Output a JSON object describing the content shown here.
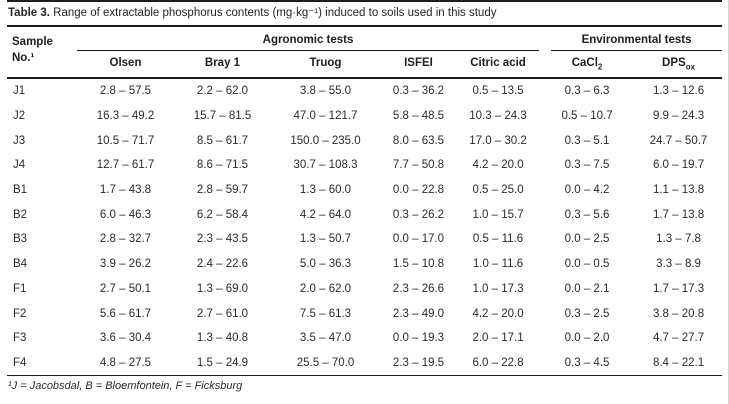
{
  "caption": {
    "label": "Table 3.",
    "text": " Range of extractable phosphorus contents (mg·kg⁻¹) induced to soils used in this study"
  },
  "table": {
    "corner_header": "Sample\nNo.¹",
    "group_headers": [
      "Agronomic tests",
      "Environmental tests"
    ],
    "columns": [
      {
        "base": "Olsen",
        "sub": ""
      },
      {
        "base": "Bray 1",
        "sub": ""
      },
      {
        "base": "Truog",
        "sub": ""
      },
      {
        "base": "ISFEI",
        "sub": ""
      },
      {
        "base": "Citric acid",
        "sub": ""
      },
      {
        "base": "CaCl",
        "sub": "2"
      },
      {
        "base": "DPS",
        "sub": "ox"
      }
    ],
    "rows": [
      {
        "sample": "J1",
        "values": [
          "2.8 – 57.5",
          "2.2 – 62.0",
          "3.8 – 55.0",
          "0.3 – 36.2",
          "0.5 – 13.5",
          "0.3 – 6.3",
          "1.3 – 12.6"
        ]
      },
      {
        "sample": "J2",
        "values": [
          "16.3 – 49.2",
          "15.7 – 81.5",
          "47.0 – 121.7",
          "5.8 – 48.5",
          "10.3 – 24.3",
          "0.5 – 10.7",
          "9.9 – 24.3"
        ]
      },
      {
        "sample": "J3",
        "values": [
          "10.5 – 71.7",
          "8.5 – 61.7",
          "150.0 – 235.0",
          "8.0 – 63.5",
          "17.0 – 30.2",
          "0.3 – 5.1",
          "24.7 – 50.7"
        ]
      },
      {
        "sample": "J4",
        "values": [
          "12.7 – 61.7",
          "8.6 – 71.5",
          "30.7 – 108.3",
          "7.7 – 50.8",
          "4.2 – 20.0",
          "0.3 – 7.5",
          "6.0 – 19.7"
        ]
      },
      {
        "sample": "B1",
        "values": [
          "1.7 – 43.8",
          "2.8 – 59.7",
          "1.3 – 60.0",
          "0.0 – 22.8",
          "0.5 – 25.0",
          "0.0 – 4.2",
          "1.1 – 13.8"
        ]
      },
      {
        "sample": "B2",
        "values": [
          "6.0 – 46.3",
          "6.2 – 58.4",
          "4.2 – 64.0",
          "0.3 – 26.2",
          "1.0 – 15.7",
          "0.3 – 5.6",
          "1.7 – 13.8"
        ]
      },
      {
        "sample": "B3",
        "values": [
          "2.8 – 32.7",
          "2.3 – 43.5",
          "1.3 – 50.7",
          "0.0 – 17.0",
          "0.5 – 11.6",
          "0.0 – 2.5",
          "1.3 – 7.8"
        ]
      },
      {
        "sample": "B4",
        "values": [
          "3.9 – 26.2",
          "2.4 – 22.6",
          "5.0 – 36.3",
          "1.5 – 10.8",
          "1.0 – 11.6",
          "0.0 – 0.5",
          "3.3 – 8.9"
        ]
      },
      {
        "sample": "F1",
        "values": [
          "2.7 – 50.1",
          "1.3 – 69.0",
          "2.0 – 62.0",
          "2.3 – 26.6",
          "1.0 – 17.3",
          "0.0 – 2.1",
          "1.7 – 17.3"
        ]
      },
      {
        "sample": "F2",
        "values": [
          "5.6 – 61.7",
          "2.7 – 61.0",
          "7.5 – 61.3",
          "2.3 – 49.0",
          "4.2 – 20.0",
          "0.3 – 2.5",
          "3.8 – 20.8"
        ]
      },
      {
        "sample": "F3",
        "values": [
          "3.6 – 30.4",
          "1.3 – 40.8",
          "3.5 – 47.0",
          "0.0 – 19.3",
          "2.0 – 17.1",
          "0.0 – 2.0",
          "4.7 – 27.7"
        ]
      },
      {
        "sample": "F4",
        "values": [
          "4.8 – 27.5",
          "1.5 – 24.9",
          "25.5 – 70.0",
          "2.3 – 19.5",
          "6.0 – 22.8",
          "0.3 – 4.5",
          "8.4 – 22.1"
        ]
      }
    ]
  },
  "footnote": "¹J = Jacobsdal, B = Bloemfontein, F = Ficksburg"
}
